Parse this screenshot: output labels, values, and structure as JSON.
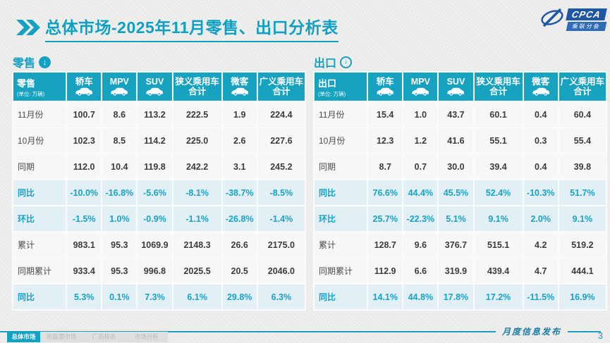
{
  "header": {
    "title": "总体市场-2025年11月零售、出口分析表",
    "logo_text": "CPCA",
    "logo_subtext": "乘联分会"
  },
  "colors": {
    "accent_teal": "#17a2c0",
    "highlight_row_bg": "#e2f0f6",
    "highlight_text": "#17a2c6",
    "logo_blue": "#1f57a4"
  },
  "tables": [
    {
      "section_label": "零售",
      "corner_label": "零售",
      "unit_label": "(单位: 万辆)",
      "columns": [
        {
          "label": "轿车",
          "icon": "sedan-icon"
        },
        {
          "label": "MPV",
          "icon": "mpv-icon"
        },
        {
          "label": "SUV",
          "icon": "suv-icon"
        },
        {
          "label": "狭义乘用车\n合计",
          "icon": null
        },
        {
          "label": "微客",
          "icon": "microvan-icon"
        },
        {
          "label": "广义乘用车\n合计",
          "icon": null
        }
      ],
      "rows": [
        {
          "label": "11月份",
          "type": "normal",
          "values": [
            "100.7",
            "8.6",
            "113.2",
            "222.5",
            "1.9",
            "224.4"
          ]
        },
        {
          "label": "10月份",
          "type": "normal",
          "values": [
            "102.3",
            "8.5",
            "114.2",
            "225.0",
            "2.6",
            "227.6"
          ]
        },
        {
          "label": "同期",
          "type": "normal",
          "values": [
            "112.0",
            "10.4",
            "119.8",
            "242.2",
            "3.1",
            "245.2"
          ]
        },
        {
          "label": "同比",
          "type": "highlight",
          "values": [
            "-10.0%",
            "-16.8%",
            "-5.6%",
            "-8.1%",
            "-38.7%",
            "-8.5%"
          ]
        },
        {
          "label": "环比",
          "type": "highlight",
          "values": [
            "-1.5%",
            "1.0%",
            "-0.9%",
            "-1.1%",
            "-26.8%",
            "-1.4%"
          ]
        },
        {
          "label": "累计",
          "type": "normal",
          "values": [
            "983.1",
            "95.3",
            "1069.9",
            "2148.3",
            "26.6",
            "2175.0"
          ]
        },
        {
          "label": "同期累计",
          "type": "normal",
          "values": [
            "933.4",
            "95.3",
            "996.8",
            "2025.5",
            "20.5",
            "2046.0"
          ]
        },
        {
          "label": "同比",
          "type": "highlight",
          "values": [
            "5.3%",
            "0.1%",
            "7.3%",
            "6.1%",
            "29.8%",
            "6.3%"
          ]
        }
      ]
    },
    {
      "section_label": "出口",
      "corner_label": "出口",
      "unit_label": "(单位: 万辆)",
      "columns": [
        {
          "label": "轿车",
          "icon": "sedan-icon"
        },
        {
          "label": "MPV",
          "icon": "mpv-icon"
        },
        {
          "label": "SUV",
          "icon": "suv-icon"
        },
        {
          "label": "狭义乘用车\n合计",
          "icon": null
        },
        {
          "label": "微客",
          "icon": "microvan-icon"
        },
        {
          "label": "广义乘用车\n合计",
          "icon": null
        }
      ],
      "rows": [
        {
          "label": "11月份",
          "type": "normal",
          "values": [
            "15.4",
            "1.0",
            "43.7",
            "60.1",
            "0.4",
            "60.4"
          ]
        },
        {
          "label": "10月份",
          "type": "normal",
          "values": [
            "12.3",
            "1.2",
            "41.6",
            "55.1",
            "0.3",
            "55.4"
          ]
        },
        {
          "label": "同期",
          "type": "normal",
          "values": [
            "8.7",
            "0.7",
            "30.0",
            "39.4",
            "0.4",
            "39.8"
          ]
        },
        {
          "label": "同比",
          "type": "highlight",
          "values": [
            "76.6%",
            "44.4%",
            "45.5%",
            "52.4%",
            "-10.3%",
            "51.7%"
          ]
        },
        {
          "label": "环比",
          "type": "highlight",
          "values": [
            "25.7%",
            "-22.3%",
            "5.1%",
            "9.1%",
            "2.0%",
            "9.1%"
          ]
        },
        {
          "label": "累计",
          "type": "normal",
          "values": [
            "128.7",
            "9.6",
            "376.7",
            "515.1",
            "4.2",
            "519.2"
          ]
        },
        {
          "label": "同期累计",
          "type": "normal",
          "values": [
            "112.9",
            "6.6",
            "319.9",
            "439.4",
            "4.7",
            "444.1"
          ]
        },
        {
          "label": "同比",
          "type": "highlight",
          "values": [
            "14.1%",
            "44.8%",
            "17.8%",
            "17.2%",
            "-11.5%",
            "16.9%"
          ]
        }
      ]
    }
  ],
  "footer": {
    "caption": "月度信息发布",
    "page_number": "3",
    "tabs": [
      {
        "label": "总体市场",
        "active": true
      },
      {
        "label": "新能源市场",
        "active": false
      },
      {
        "label": "厂商排名",
        "active": false
      },
      {
        "label": "市场分析",
        "active": false
      }
    ]
  },
  "watermark": "CPCA"
}
